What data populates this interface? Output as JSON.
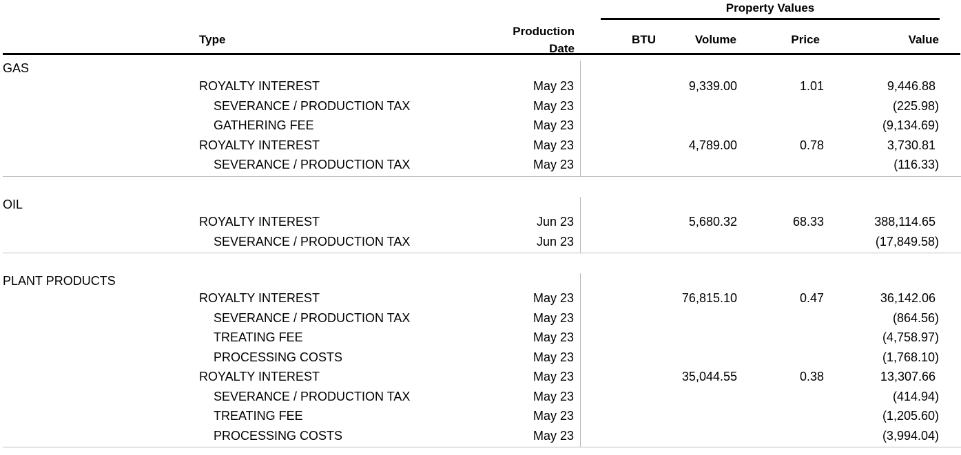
{
  "header": {
    "group_title": "Property Values",
    "type": "Type",
    "production_date_line1": "Production",
    "production_date_line2": "Date",
    "btu": "BTU",
    "volume": "Volume",
    "price": "Price",
    "value": "Value"
  },
  "sections": [
    {
      "category": "GAS",
      "rows": [
        {
          "desc": "ROYALTY INTEREST",
          "date": "May 23",
          "volume": "9,339.00",
          "price": "1.01",
          "value": "9,446.88"
        },
        {
          "desc": "SEVERANCE / PRODUCTION TAX",
          "date": "May 23",
          "volume": "",
          "price": "",
          "value": "(225.98)"
        },
        {
          "desc": "GATHERING FEE",
          "date": "May 23",
          "volume": "",
          "price": "",
          "value": "(9,134.69)"
        },
        {
          "desc": "ROYALTY INTEREST",
          "date": "May 23",
          "volume": "4,789.00",
          "price": "0.78",
          "value": "3,730.81"
        },
        {
          "desc": "SEVERANCE / PRODUCTION TAX",
          "date": "May 23",
          "volume": "",
          "price": "",
          "value": "(116.33)"
        }
      ]
    },
    {
      "category": "OIL",
      "rows": [
        {
          "desc": "ROYALTY INTEREST",
          "date": "Jun 23",
          "volume": "5,680.32",
          "price": "68.33",
          "value": "388,114.65"
        },
        {
          "desc": "SEVERANCE / PRODUCTION TAX",
          "date": "Jun 23",
          "volume": "",
          "price": "",
          "value": "(17,849.58)"
        }
      ]
    },
    {
      "category": "PLANT PRODUCTS",
      "rows": [
        {
          "desc": "ROYALTY INTEREST",
          "date": "May 23",
          "volume": "76,815.10",
          "price": "0.47",
          "value": "36,142.06"
        },
        {
          "desc": "SEVERANCE / PRODUCTION TAX",
          "date": "May 23",
          "volume": "",
          "price": "",
          "value": "(864.56)"
        },
        {
          "desc": "TREATING FEE",
          "date": "May 23",
          "volume": "",
          "price": "",
          "value": "(4,758.97)"
        },
        {
          "desc": "PROCESSING COSTS",
          "date": "May 23",
          "volume": "",
          "price": "",
          "value": "(1,768.10)"
        },
        {
          "desc": "ROYALTY INTEREST",
          "date": "May 23",
          "volume": "35,044.55",
          "price": "0.38",
          "value": "13,307.66"
        },
        {
          "desc": "SEVERANCE / PRODUCTION TAX",
          "date": "May 23",
          "volume": "",
          "price": "",
          "value": "(414.94)"
        },
        {
          "desc": "TREATING FEE",
          "date": "May 23",
          "volume": "",
          "price": "",
          "value": "(1,205.60)"
        },
        {
          "desc": "PROCESSING COSTS",
          "date": "May 23",
          "volume": "",
          "price": "",
          "value": "(3,994.04)"
        }
      ]
    }
  ]
}
